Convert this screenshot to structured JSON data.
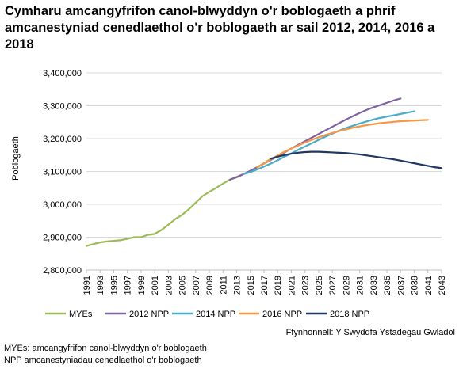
{
  "chart_data": {
    "type": "line",
    "title": "Cymharu amcangyfrifon canol-blwyddyn o'r boblogaeth a phrif amcanestyniad cenedlaethol o'r boblogaeth ar sail 2012, 2014, 2016 a 2018",
    "xlabel": "",
    "ylabel": "Poblogaeth",
    "ylim": [
      2800000,
      3400000
    ],
    "yticks": [
      2800000,
      2900000,
      3000000,
      3100000,
      3200000,
      3300000,
      3400000
    ],
    "ytick_labels": [
      "2,800,000",
      "2,900,000",
      "3,000,000",
      "3,100,000",
      "3,200,000",
      "3,300,000",
      "3,400,000"
    ],
    "xlim": [
      1991,
      2043
    ],
    "xticks": [
      1991,
      1993,
      1995,
      1997,
      1999,
      2001,
      2003,
      2005,
      2007,
      2009,
      2011,
      2013,
      2015,
      2017,
      2019,
      2021,
      2023,
      2025,
      2027,
      2029,
      2031,
      2033,
      2035,
      2037,
      2039,
      2041,
      2043
    ],
    "grid": true,
    "legend_position": "bottom",
    "series": [
      {
        "name": "MYEs",
        "color": "#9bbb59",
        "x": [
          1991,
          1992,
          1993,
          1994,
          1995,
          1996,
          1997,
          1998,
          1999,
          2000,
          2001,
          2002,
          2003,
          2004,
          2005,
          2006,
          2007,
          2008,
          2009,
          2010,
          2011,
          2012,
          2013,
          2014,
          2015,
          2016,
          2017,
          2018
        ],
        "values": [
          2873000,
          2879000,
          2884000,
          2887000,
          2889000,
          2891000,
          2895000,
          2900000,
          2900000,
          2907000,
          2910000,
          2922000,
          2938000,
          2955000,
          2968000,
          2985000,
          3005000,
          3025000,
          3038000,
          3050000,
          3063000,
          3075000,
          3082000,
          3092000,
          3099000,
          3113000,
          3125000,
          3139000
        ]
      },
      {
        "name": "2012 NPP",
        "color": "#8064a2",
        "x": [
          2012,
          2013,
          2014,
          2015,
          2016,
          2017,
          2018,
          2019,
          2020,
          2021,
          2022,
          2023,
          2024,
          2025,
          2026,
          2027,
          2028,
          2029,
          2030,
          2031,
          2032,
          2033,
          2034,
          2035,
          2036,
          2037
        ],
        "values": [
          3075000,
          3083000,
          3092000,
          3102000,
          3113000,
          3124000,
          3135000,
          3147000,
          3158000,
          3170000,
          3181000,
          3192000,
          3203000,
          3214000,
          3225000,
          3236000,
          3247000,
          3258000,
          3268000,
          3278000,
          3287000,
          3295000,
          3302000,
          3309000,
          3316000,
          3322000
        ]
      },
      {
        "name": "2014 NPP",
        "color": "#4bacc6",
        "x": [
          2014,
          2015,
          2016,
          2017,
          2018,
          2019,
          2020,
          2021,
          2022,
          2023,
          2024,
          2025,
          2026,
          2027,
          2028,
          2029,
          2030,
          2031,
          2032,
          2033,
          2034,
          2035,
          2036,
          2037,
          2038,
          2039
        ],
        "values": [
          3092000,
          3098000,
          3106000,
          3115000,
          3124000,
          3134000,
          3145000,
          3155000,
          3166000,
          3176000,
          3186000,
          3196000,
          3206000,
          3215000,
          3224000,
          3232000,
          3239000,
          3246000,
          3252000,
          3258000,
          3263000,
          3267000,
          3271000,
          3275000,
          3279000,
          3283000
        ]
      },
      {
        "name": "2016 NPP",
        "color": "#f79646",
        "x": [
          2016,
          2017,
          2018,
          2019,
          2020,
          2021,
          2022,
          2023,
          2024,
          2025,
          2026,
          2027,
          2028,
          2029,
          2030,
          2031,
          2032,
          2033,
          2034,
          2035,
          2036,
          2037,
          2038,
          2039,
          2040,
          2041
        ],
        "values": [
          3113000,
          3124000,
          3137000,
          3149000,
          3160000,
          3170000,
          3179000,
          3188000,
          3196000,
          3204000,
          3211000,
          3217000,
          3223000,
          3228000,
          3233000,
          3237000,
          3241000,
          3244000,
          3247000,
          3249000,
          3251000,
          3253000,
          3254000,
          3255000,
          3256000,
          3257000
        ]
      },
      {
        "name": "2018 NPP",
        "color": "#1f3864",
        "x": [
          2018,
          2019,
          2020,
          2021,
          2022,
          2023,
          2024,
          2025,
          2026,
          2027,
          2028,
          2029,
          2030,
          2031,
          2032,
          2033,
          2034,
          2035,
          2036,
          2037,
          2038,
          2039,
          2040,
          2041,
          2042,
          2043
        ],
        "values": [
          3139000,
          3145000,
          3150000,
          3154000,
          3157000,
          3159000,
          3160000,
          3160000,
          3159000,
          3158000,
          3157000,
          3156000,
          3154000,
          3152000,
          3149000,
          3146000,
          3143000,
          3140000,
          3137000,
          3133000,
          3129000,
          3125000,
          3121000,
          3117000,
          3113000,
          3110000
        ]
      }
    ]
  },
  "source": "Ffynhonnell: Y Swyddfa Ystadegau Gwladol",
  "notes": [
    "MYEs: amcangyfrifon canol-blwyddyn o'r boblogaeth",
    "NPP amcanestyniadau cenedlaethol o'r boblogaeth"
  ]
}
